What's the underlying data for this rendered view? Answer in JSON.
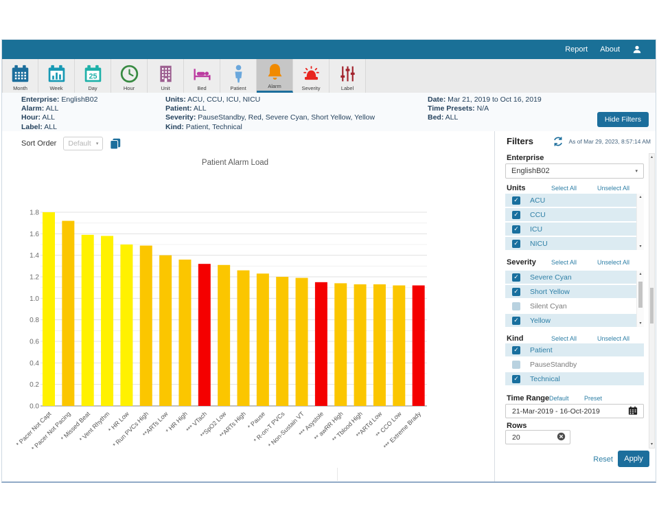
{
  "topbar": {
    "report": "Report",
    "about": "About"
  },
  "toolbar": {
    "items": [
      {
        "name": "month",
        "label": "Month",
        "icon": "calendar-month-icon",
        "color": "#1C6E9C",
        "selected": false
      },
      {
        "name": "week",
        "label": "Week",
        "icon": "calendar-week-icon",
        "color": "#1899B4",
        "selected": false
      },
      {
        "name": "day",
        "label": "Day",
        "icon": "calendar-day-icon",
        "color": "#1FB1A9",
        "selected": false
      },
      {
        "name": "hour",
        "label": "Hour",
        "icon": "clock-icon",
        "color": "#378A41",
        "selected": false
      },
      {
        "name": "unit",
        "label": "Unit",
        "icon": "building-icon",
        "color": "#9C5F90",
        "selected": false
      },
      {
        "name": "bed",
        "label": "Bed",
        "icon": "bed-icon",
        "color": "#BB3BA0",
        "selected": false
      },
      {
        "name": "patient",
        "label": "Patient",
        "icon": "person-icon",
        "color": "#6AA7DC",
        "selected": false
      },
      {
        "name": "alarm",
        "label": "Alarm",
        "icon": "bell-icon",
        "color": "#F08A00",
        "selected": true
      },
      {
        "name": "severity",
        "label": "Severity",
        "icon": "siren-icon",
        "color": "#E8261F",
        "selected": false
      },
      {
        "name": "label",
        "label": "Label",
        "icon": "sliders-icon",
        "color": "#A2232D",
        "selected": false
      }
    ]
  },
  "filter_summary": {
    "columns": [
      [
        {
          "label": "Enterprise:",
          "value": "EnglishB02"
        },
        {
          "label": "Alarm:",
          "value": "ALL"
        },
        {
          "label": "Hour:",
          "value": "ALL"
        },
        {
          "label": "Label:",
          "value": "ALL"
        }
      ],
      [
        {
          "label": "Units:",
          "value": "ACU, CCU, ICU, NICU"
        },
        {
          "label": "Patient:",
          "value": "ALL"
        },
        {
          "label": "Severity:",
          "value": "PauseStandby, Red, Severe Cyan, Short Yellow, Yellow"
        },
        {
          "label": "Kind:",
          "value": "Patient, Technical"
        }
      ],
      [
        {
          "label": "Date:",
          "value": "Mar 21, 2019 to Oct 16, 2019"
        },
        {
          "label": "Time Presets:",
          "value": "N/A"
        },
        {
          "label": "Bed:",
          "value": "ALL"
        }
      ]
    ],
    "hide_filters": "Hide Filters"
  },
  "sort": {
    "label": "Sort Order",
    "value": "Default"
  },
  "chart_data": {
    "type": "bar",
    "title": "Patient Alarm Load",
    "xlabel": "",
    "ylabel": "",
    "categories": [
      "* Pacer Not Capt",
      "* Pacer Not Pacing",
      "* Missed Beat",
      "* Vent Rhythm",
      "* HR Low",
      "* Run PVCs High",
      "**ARTs Low",
      "* HR High",
      "*** VTach",
      "**SpO2 Low",
      "**ARTs High",
      "* Pause",
      "* R-on-T PVCs",
      "* Non-Sustain VT",
      "*** Asystole",
      "** awRR High",
      "** Tblood High",
      "**ARTd Low",
      "** CCO Low",
      "*** Extreme Brady"
    ],
    "values": [
      1.8,
      1.72,
      1.59,
      1.58,
      1.5,
      1.49,
      1.4,
      1.36,
      1.32,
      1.31,
      1.26,
      1.23,
      1.2,
      1.19,
      1.15,
      1.14,
      1.13,
      1.13,
      1.12,
      1.12
    ],
    "bar_colors": [
      "#FFF100",
      "#FBC600",
      "#FFF100",
      "#FFF100",
      "#FFF100",
      "#FBC600",
      "#FBC600",
      "#FBC600",
      "#F40000",
      "#FBC600",
      "#FBC600",
      "#FBC600",
      "#FBC600",
      "#FBC600",
      "#F40000",
      "#FBC600",
      "#FBC600",
      "#FBC600",
      "#FBC600",
      "#F40000"
    ],
    "severity_colors": {
      "short_yellow": "#FFF100",
      "yellow": "#FBC600",
      "red": "#F40000"
    },
    "ylim": [
      0,
      1.8
    ],
    "ytick_step": 0.2,
    "minor_grid_step": 0.1,
    "grid": true,
    "legend": "none"
  },
  "filters_panel": {
    "title": "Filters",
    "as_of": "As of Mar 29, 2023, 8:57:14 AM",
    "select_all": "Select All",
    "unselect_all": "Unselect All",
    "enterprise": {
      "label": "Enterprise",
      "value": "EnglishB02"
    },
    "units": {
      "label": "Units",
      "items": [
        {
          "label": "ACU",
          "checked": true
        },
        {
          "label": "CCU",
          "checked": true
        },
        {
          "label": "ICU",
          "checked": true
        },
        {
          "label": "NICU",
          "checked": true
        }
      ]
    },
    "severity": {
      "label": "Severity",
      "items": [
        {
          "label": "Severe Cyan",
          "checked": true
        },
        {
          "label": "Short Yellow",
          "checked": true
        },
        {
          "label": "Silent Cyan",
          "checked": false
        },
        {
          "label": "Yellow",
          "checked": true
        }
      ]
    },
    "kind": {
      "label": "Kind",
      "items": [
        {
          "label": "Patient",
          "checked": true
        },
        {
          "label": "PauseStandby",
          "checked": false
        },
        {
          "label": "Technical",
          "checked": true
        }
      ]
    },
    "time_range": {
      "label": "Time Range",
      "default_link": "Default",
      "preset_link": "Preset",
      "value": "21-Mar-2019 - 16-Oct-2019"
    },
    "rows": {
      "label": "Rows",
      "value": "20"
    },
    "reset": "Reset",
    "apply": "Apply"
  },
  "colors": {
    "topbar_bg": "#1A7097",
    "accent_blue": "#1C6E9C",
    "link": "#2E7FA6",
    "selected_row_bg": "#DCEBF2"
  }
}
